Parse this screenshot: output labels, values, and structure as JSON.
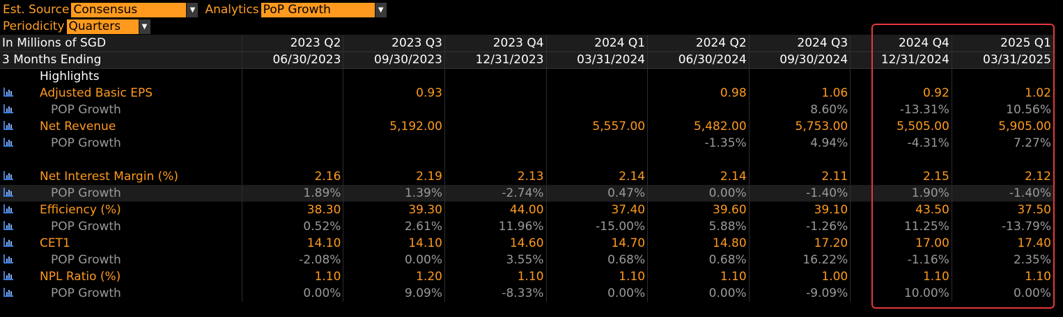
{
  "controls": {
    "est_source_label": "Est. Source",
    "est_source_value": "Consensus",
    "analytics_label": "Analytics",
    "analytics_value": "PoP Growth",
    "periodicity_label": "Periodicity",
    "periodicity_value": "Quarters"
  },
  "header": {
    "unit_label": "In Millions of SGD",
    "ending_label": "3 Months Ending",
    "periods": [
      "2023 Q2",
      "2023 Q3",
      "2023 Q4",
      "2024 Q1",
      "2024 Q2",
      "2024 Q3",
      "2024 Q4",
      "2025 Q1"
    ],
    "dates": [
      "06/30/2023",
      "09/30/2023",
      "12/31/2023",
      "03/31/2024",
      "06/30/2024",
      "09/30/2024",
      "12/31/2024",
      "03/31/2025"
    ]
  },
  "section_label": "Highlights",
  "rows": [
    {
      "name": "Adjusted Basic EPS",
      "values": [
        "",
        "0.93",
        "",
        "",
        "0.98",
        "1.06",
        "0.92",
        "1.02"
      ]
    },
    {
      "name": "POP Growth",
      "values": [
        "",
        "",
        "",
        "",
        "",
        "8.60%",
        "-13.31%",
        "10.56%"
      ]
    },
    {
      "name": "Net Revenue",
      "values": [
        "",
        "5,192.00",
        "",
        "5,557.00",
        "5,482.00",
        "5,753.00",
        "5,505.00",
        "5,905.00"
      ]
    },
    {
      "name": "POP Growth",
      "values": [
        "",
        "",
        "",
        "",
        "-1.35%",
        "4.94%",
        "-4.31%",
        "7.27%"
      ]
    },
    {
      "name": "Net Interest Margin (%)",
      "values": [
        "2.16",
        "2.19",
        "2.13",
        "2.14",
        "2.14",
        "2.11",
        "2.15",
        "2.12"
      ]
    },
    {
      "name": "POP Growth",
      "values": [
        "1.89%",
        "1.39%",
        "-2.74%",
        "0.47%",
        "0.00%",
        "-1.40%",
        "1.90%",
        "-1.40%"
      ]
    },
    {
      "name": "Efficiency (%)",
      "values": [
        "38.30",
        "39.30",
        "44.00",
        "37.40",
        "39.60",
        "39.10",
        "43.50",
        "37.50"
      ]
    },
    {
      "name": "POP Growth",
      "values": [
        "0.52%",
        "2.61%",
        "11.96%",
        "-15.00%",
        "5.88%",
        "-1.26%",
        "11.25%",
        "-13.79%"
      ]
    },
    {
      "name": "CET1",
      "values": [
        "14.10",
        "14.10",
        "14.60",
        "14.70",
        "14.80",
        "17.20",
        "17.00",
        "17.40"
      ]
    },
    {
      "name": "POP Growth",
      "values": [
        "-2.08%",
        "0.00%",
        "3.55%",
        "0.68%",
        "0.68%",
        "16.22%",
        "-1.16%",
        "2.35%"
      ]
    },
    {
      "name": "NPL Ratio (%)",
      "values": [
        "1.10",
        "1.20",
        "1.10",
        "1.10",
        "1.10",
        "1.00",
        "1.10",
        "1.10"
      ]
    },
    {
      "name": "POP Growth",
      "values": [
        "0.00%",
        "9.09%",
        "-8.33%",
        "0.00%",
        "0.00%",
        "-9.09%",
        "10.00%",
        "0.00%"
      ]
    }
  ],
  "colors": {
    "accent": "#ff9a1e",
    "highlight_box": "#e8383a",
    "sub_text": "#9a9a9a"
  }
}
